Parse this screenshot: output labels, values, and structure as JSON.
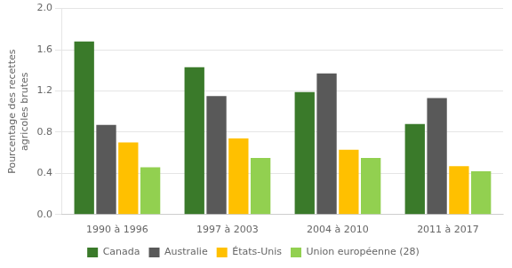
{
  "chart_data": {
    "type": "bar",
    "categories": [
      "1990 à 1996",
      "1997 à 2003",
      "2004 à 2010",
      "2011 à 2017"
    ],
    "series": [
      {
        "name": "Canada",
        "color": "#3a7a2a",
        "values": [
          1.68,
          1.43,
          1.19,
          0.88
        ]
      },
      {
        "name": "Australie",
        "color": "#595959",
        "values": [
          0.87,
          1.15,
          1.37,
          1.13
        ]
      },
      {
        "name": "États-Unis",
        "color": "#ffc000",
        "values": [
          0.7,
          0.74,
          0.63,
          0.47
        ]
      },
      {
        "name": "Union européenne (28)",
        "color": "#92d050",
        "values": [
          0.46,
          0.55,
          0.55,
          0.42
        ]
      }
    ],
    "ylabel": "Pourcentage des recettes\nagricoles brutes",
    "ylim": [
      0.0,
      2.0
    ],
    "yticks": [
      {
        "value": 0,
        "label": "0.0"
      },
      0.4,
      0.8,
      1.2,
      1.6,
      {
        "value": 2,
        "label": "2.0"
      }
    ],
    "grid": true,
    "legend": "bottom"
  }
}
